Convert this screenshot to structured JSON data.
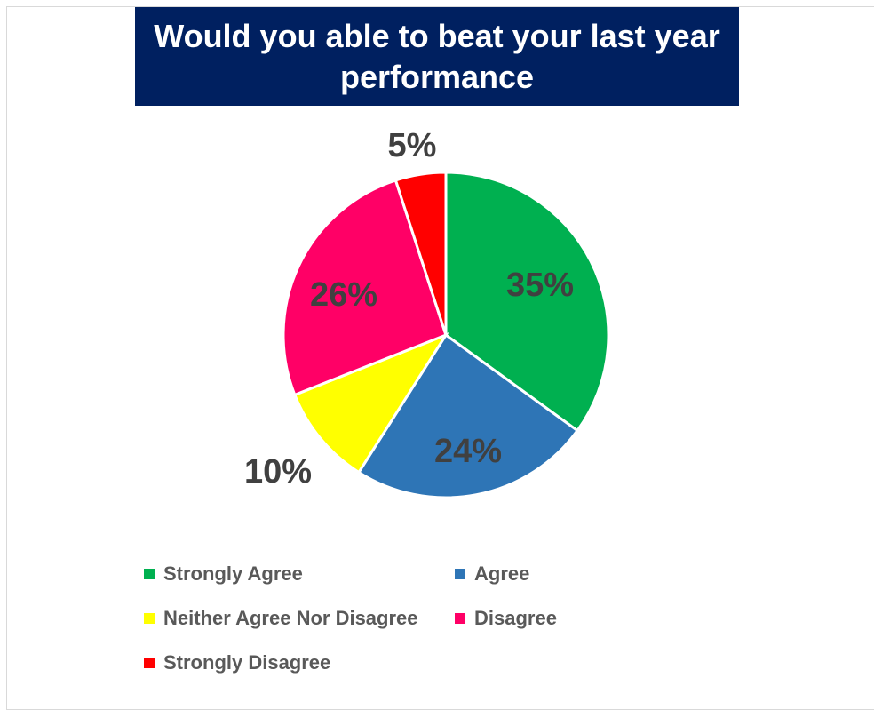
{
  "chart_data": {
    "type": "pie",
    "title": "Would you able to beat your last year performance",
    "categories": [
      "Strongly Agree",
      "Agree",
      "Neither Agree Nor Disagree",
      "Disagree",
      "Strongly Disagree"
    ],
    "values": [
      35,
      24,
      10,
      26,
      5
    ],
    "labels": [
      "35%",
      "24%",
      "10%",
      "26%",
      "5%"
    ],
    "colors": [
      "#00B050",
      "#2E75B6",
      "#FFFF00",
      "#FF0066",
      "#FF0000"
    ],
    "legend_position": "bottom"
  }
}
